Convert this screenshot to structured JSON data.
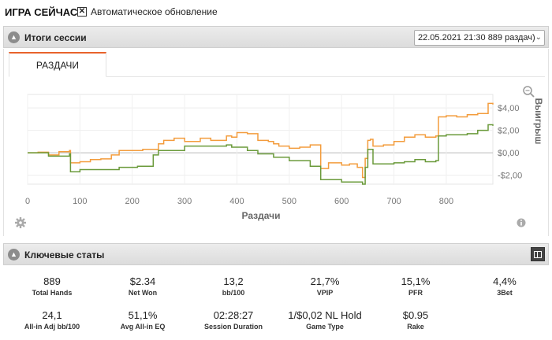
{
  "app": {
    "title": "ИГРА СЕЙЧАС",
    "auto_update_label": "Автоматическое обновление",
    "auto_update_checked": "✕"
  },
  "session_panel": {
    "title": "Итоги сессии",
    "collapse_icon": "chevron-up-icon",
    "select_value": "22.05.2021 21:30 889 раздач)",
    "tab_label": "РАЗДАЧИ"
  },
  "chart_data": {
    "type": "line",
    "xlabel": "Раздачи",
    "ylabel": "Выигрыш",
    "xlim": [
      0,
      889
    ],
    "ylim": [
      -2.8,
      5.2
    ],
    "x_ticks": [
      0,
      100,
      200,
      300,
      400,
      500,
      600,
      700,
      800
    ],
    "y_ticks": [
      {
        "value": 4,
        "label": "$4,00"
      },
      {
        "value": 2,
        "label": "$2,00"
      },
      {
        "value": 0,
        "label": "$0,00"
      },
      {
        "value": -2,
        "label": "-$2,00"
      }
    ],
    "series": [
      {
        "color": "#f39c3c",
        "x": [
          0,
          20,
          40,
          60,
          80,
          82,
          100,
          120,
          140,
          160,
          175,
          190,
          220,
          250,
          260,
          280,
          300,
          330,
          350,
          380,
          390,
          400,
          420,
          440,
          460,
          470,
          480,
          500,
          520,
          540,
          560,
          575,
          600,
          615,
          630,
          640,
          645,
          650,
          655,
          660,
          680,
          700,
          720,
          740,
          760,
          780,
          785,
          800,
          820,
          840,
          860,
          880,
          889
        ],
        "y": [
          0,
          0.05,
          -0.2,
          0.1,
          0.2,
          -0.9,
          -0.8,
          -0.6,
          -0.55,
          -0.2,
          0.2,
          0.2,
          0.3,
          0.8,
          1.1,
          1.3,
          1.0,
          1.3,
          1.1,
          1.5,
          1.4,
          1.8,
          1.7,
          1.1,
          1.0,
          0.8,
          0.6,
          0.4,
          0.5,
          0.7,
          -1.4,
          -0.9,
          -1.1,
          -1.0,
          -1.3,
          -2.2,
          -0.5,
          1.1,
          1.2,
          0.6,
          0.7,
          1.0,
          1.4,
          1.6,
          1.4,
          1.5,
          3.2,
          3.3,
          3.2,
          3.4,
          3.5,
          4.4,
          4.3
        ]
      },
      {
        "color": "#6a9a3a",
        "x": [
          0,
          20,
          40,
          60,
          80,
          82,
          100,
          140,
          175,
          210,
          240,
          250,
          280,
          300,
          340,
          380,
          390,
          420,
          440,
          470,
          500,
          540,
          560,
          600,
          630,
          640,
          645,
          650,
          660,
          700,
          720,
          740,
          760,
          780,
          785,
          800,
          820,
          840,
          860,
          880,
          889
        ],
        "y": [
          0,
          0,
          -0.3,
          -0.3,
          -0.1,
          -1.7,
          -1.5,
          -1.5,
          -1.3,
          -1.2,
          -0.2,
          0.2,
          0.2,
          0.6,
          0.6,
          0.7,
          0.5,
          0.2,
          -0.1,
          -0.4,
          -0.7,
          -1.2,
          -2.4,
          -2.6,
          -2.6,
          -2.8,
          -1.3,
          0.3,
          -1.0,
          -0.9,
          -0.8,
          -0.6,
          -0.8,
          -0.7,
          1.5,
          1.6,
          1.6,
          1.7,
          2.0,
          2.5,
          2.4
        ]
      }
    ],
    "grid": true
  },
  "key_stats_panel": {
    "title": "Ключевые статы",
    "collapse_icon": "chevron-up-icon",
    "layout_icon": "columns-layout-icon"
  },
  "stats": [
    {
      "value": "889",
      "label": "Total Hands"
    },
    {
      "value": "$2.34",
      "label": "Net Won"
    },
    {
      "value": "13,2",
      "label": "bb/100"
    },
    {
      "value": "21,7%",
      "label": "VPIP"
    },
    {
      "value": "15,1%",
      "label": "PFR"
    },
    {
      "value": "4,4%",
      "label": "3Bet"
    },
    {
      "value": "24,1",
      "label": "All-in Adj bb/100"
    },
    {
      "value": "51,1%",
      "label": "Avg All-in EQ"
    },
    {
      "value": "02:28:27",
      "label": "Session Duration"
    },
    {
      "value": "1/$0,02 NL Hold",
      "label": "Game Type"
    },
    {
      "value": "$0.95",
      "label": "Rake"
    }
  ],
  "colors": {
    "accent": "#e8632b",
    "header_bg": "#e2e2e2",
    "series_orange": "#f39c3c",
    "series_green": "#6a9a3a"
  }
}
